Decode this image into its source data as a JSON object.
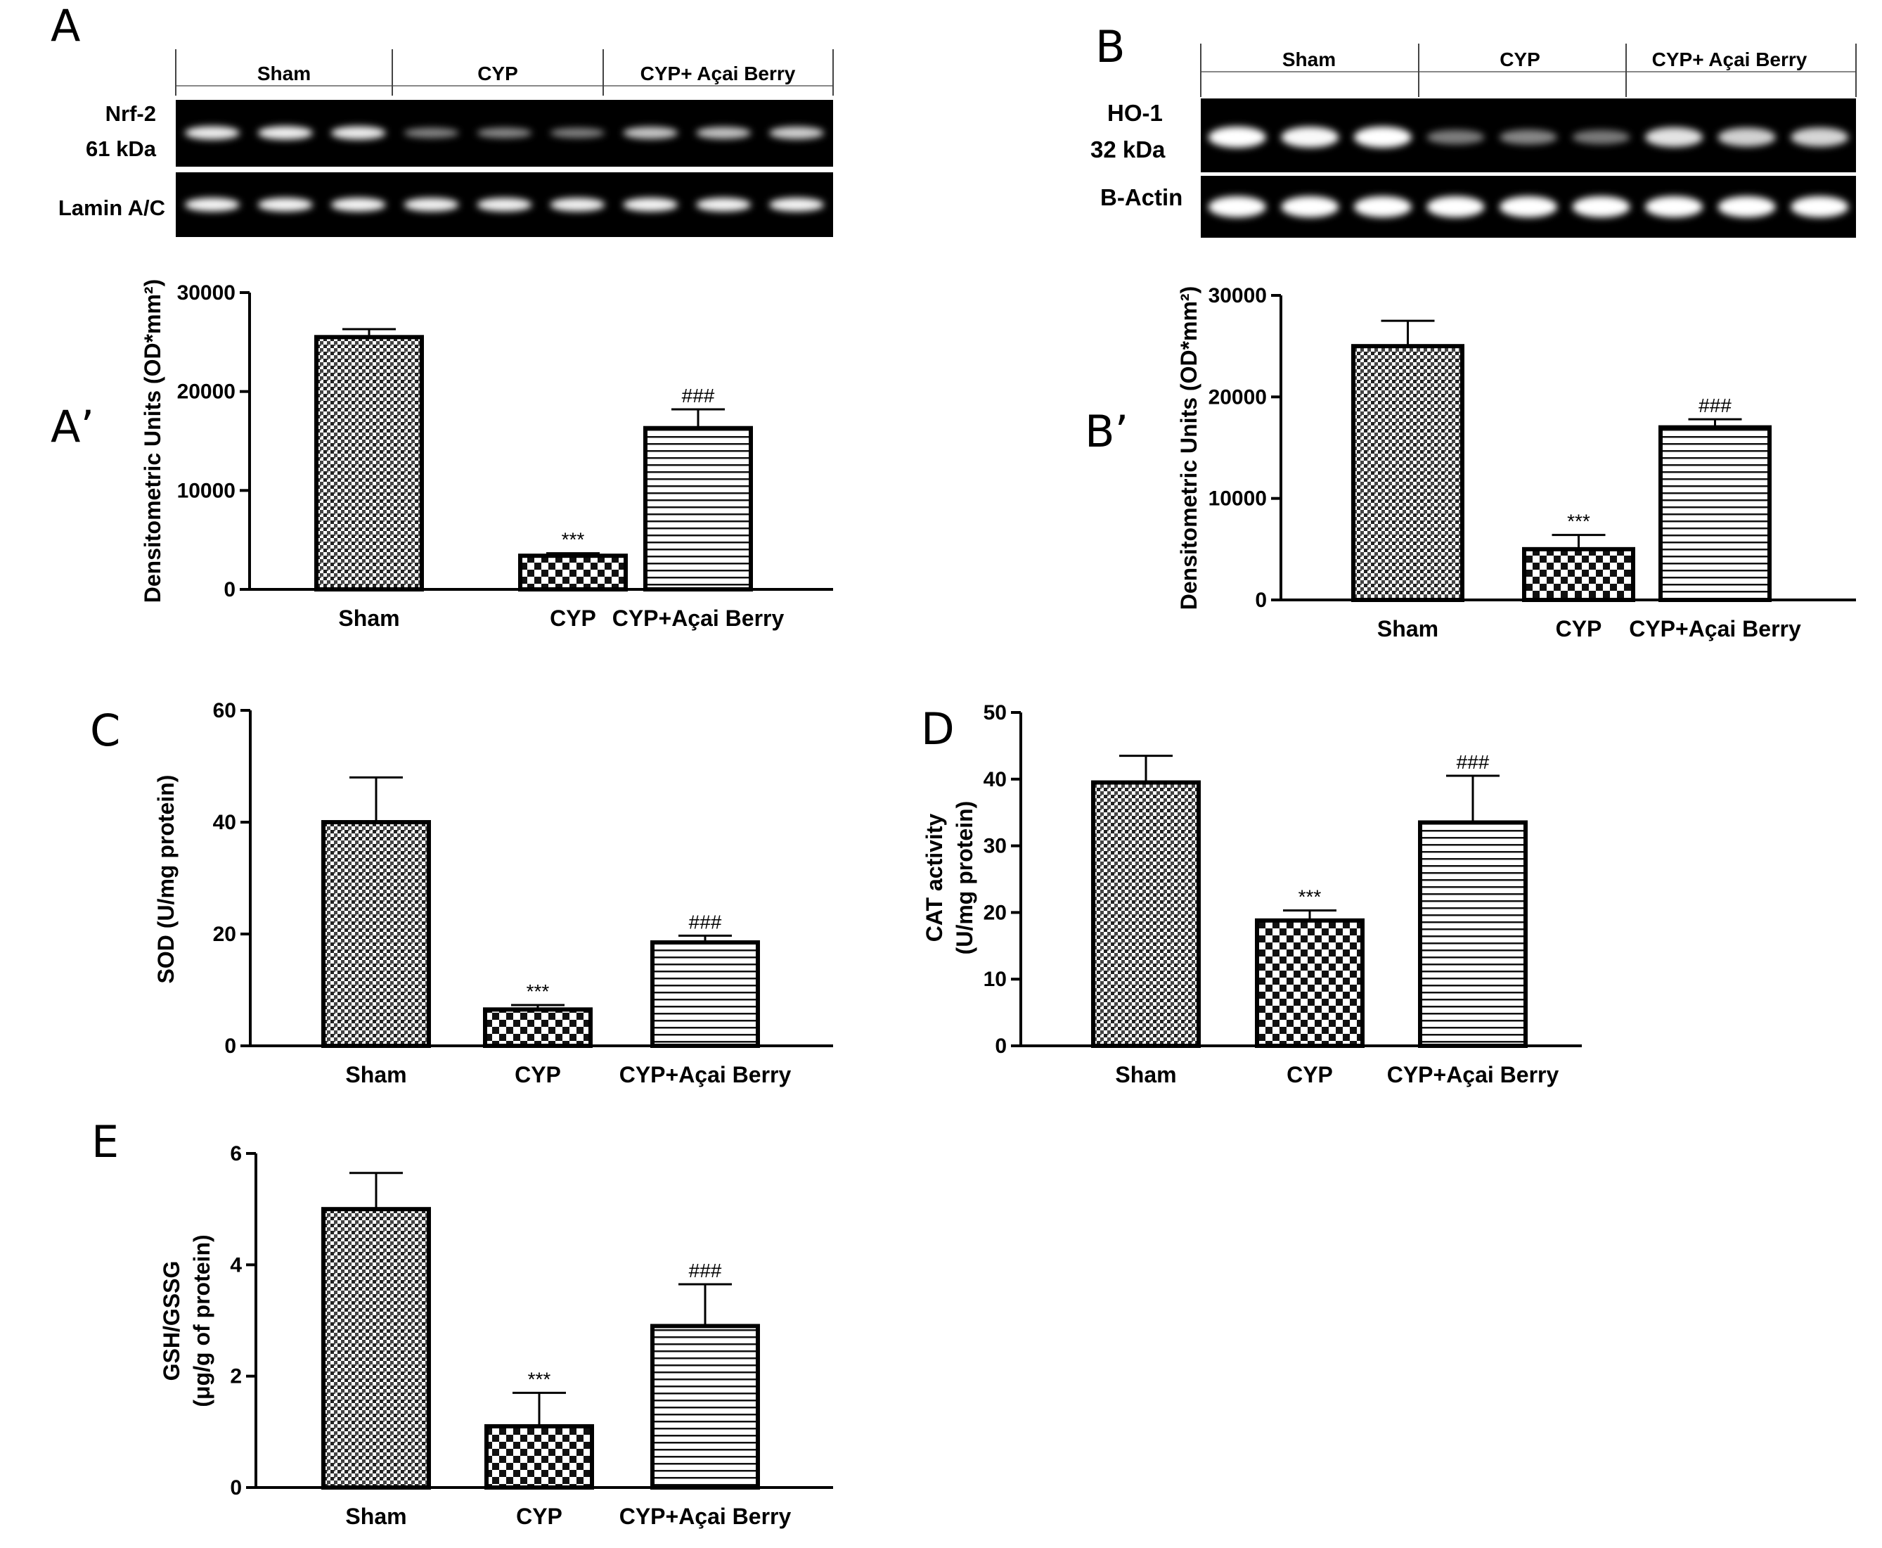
{
  "panels": {
    "a": "A",
    "a_prime": "A’",
    "b": "B",
    "b_prime": "B’",
    "c": "C",
    "d": "D",
    "e": "E"
  },
  "blots": {
    "left": {
      "groups": [
        "Sham",
        "CYP",
        "CYP+ Açai  Berry"
      ],
      "target_line1": "Nrf-2",
      "target_line2": "61 kDa",
      "control": "Lamin A/C",
      "target_intensity": [
        0.9,
        0.92,
        0.9,
        0.35,
        0.38,
        0.33,
        0.7,
        0.68,
        0.75
      ],
      "control_intensity": [
        0.95,
        0.95,
        0.95,
        0.93,
        0.93,
        0.93,
        0.95,
        0.94,
        0.95
      ]
    },
    "right": {
      "groups": [
        "Sham",
        "CYP",
        "CYP+ Açai  Berry"
      ],
      "target_line1": "HO-1",
      "target_line2": "32 kDa",
      "control": "B-Actin",
      "target_intensity": [
        1.0,
        0.97,
        1.0,
        0.3,
        0.35,
        0.28,
        0.85,
        0.75,
        0.78
      ],
      "control_intensity": [
        1.0,
        1.0,
        1.0,
        1.0,
        1.0,
        1.0,
        1.0,
        1.0,
        1.0
      ]
    }
  },
  "chart_data": [
    {
      "id": "A'",
      "type": "bar",
      "categories": [
        "Sham",
        "CYP",
        "CYP+Açai Berry"
      ],
      "values": [
        25500,
        3400,
        16300
      ],
      "errors": [
        800,
        250,
        1900
      ],
      "significance": [
        "",
        "***",
        "###"
      ],
      "ylabel": "Densitometric Units (OD*mm²)",
      "ylim": [
        0,
        30000
      ],
      "yticks": [
        0,
        10000,
        20000,
        30000
      ],
      "ytick_labels": [
        "0",
        "10000",
        "20000",
        "30000"
      ],
      "patterns": [
        "dense-dots",
        "checker",
        "horizontal-lines"
      ]
    },
    {
      "id": "B'",
      "type": "bar",
      "categories": [
        "Sham",
        "CYP",
        "CYP+Açai Berry"
      ],
      "values": [
        25000,
        5000,
        17000
      ],
      "errors": [
        2500,
        1400,
        800
      ],
      "significance": [
        "",
        "***",
        "###"
      ],
      "ylabel": "Densitometric Units (OD*mm²)",
      "ylim": [
        0,
        30000
      ],
      "yticks": [
        0,
        10000,
        20000,
        30000
      ],
      "ytick_labels": [
        "0",
        "10000",
        "20000",
        "30000"
      ],
      "patterns": [
        "dense-dots",
        "checker",
        "horizontal-lines"
      ]
    },
    {
      "id": "C",
      "type": "bar",
      "categories": [
        "Sham",
        "CYP",
        "CYP+Açai Berry"
      ],
      "values": [
        40,
        6.5,
        18.5
      ],
      "errors": [
        8,
        0.8,
        1.2
      ],
      "significance": [
        "",
        "***",
        "###"
      ],
      "ylabel": "SOD (U/mg protein)",
      "ylim": [
        0,
        60
      ],
      "yticks": [
        0,
        20,
        40,
        60
      ],
      "ytick_labels": [
        "0",
        "20",
        "40",
        "60"
      ],
      "patterns": [
        "dense-dots",
        "checker",
        "horizontal-lines"
      ]
    },
    {
      "id": "D",
      "type": "bar",
      "categories": [
        "Sham",
        "CYP",
        "CYP+Açai Berry"
      ],
      "values": [
        39.5,
        18.8,
        33.5
      ],
      "errors": [
        4,
        1.5,
        7
      ],
      "significance": [
        "",
        "***",
        "###"
      ],
      "ylabel_line1": "CAT activity",
      "ylabel_line2": "(U/mg protein)",
      "ylim": [
        0,
        50
      ],
      "yticks": [
        0,
        10,
        20,
        30,
        40,
        50
      ],
      "ytick_labels": [
        "0",
        "10",
        "20",
        "30",
        "40",
        "50"
      ],
      "patterns": [
        "dense-dots",
        "checker",
        "horizontal-lines"
      ]
    },
    {
      "id": "E",
      "type": "bar",
      "categories": [
        "Sham",
        "CYP",
        "CYP+Açai Berry"
      ],
      "values": [
        5,
        1.1,
        2.9
      ],
      "errors": [
        0.65,
        0.6,
        0.75
      ],
      "significance": [
        "",
        "***",
        "###"
      ],
      "ylabel_line1": "GSH/GSSG",
      "ylabel_line2": "(μg/g of protein)",
      "ylim": [
        0,
        6
      ],
      "yticks": [
        0,
        2,
        4,
        6
      ],
      "ytick_labels": [
        "0",
        "2",
        "4",
        "6"
      ],
      "patterns": [
        "dense-dots",
        "checker",
        "horizontal-lines"
      ]
    }
  ]
}
